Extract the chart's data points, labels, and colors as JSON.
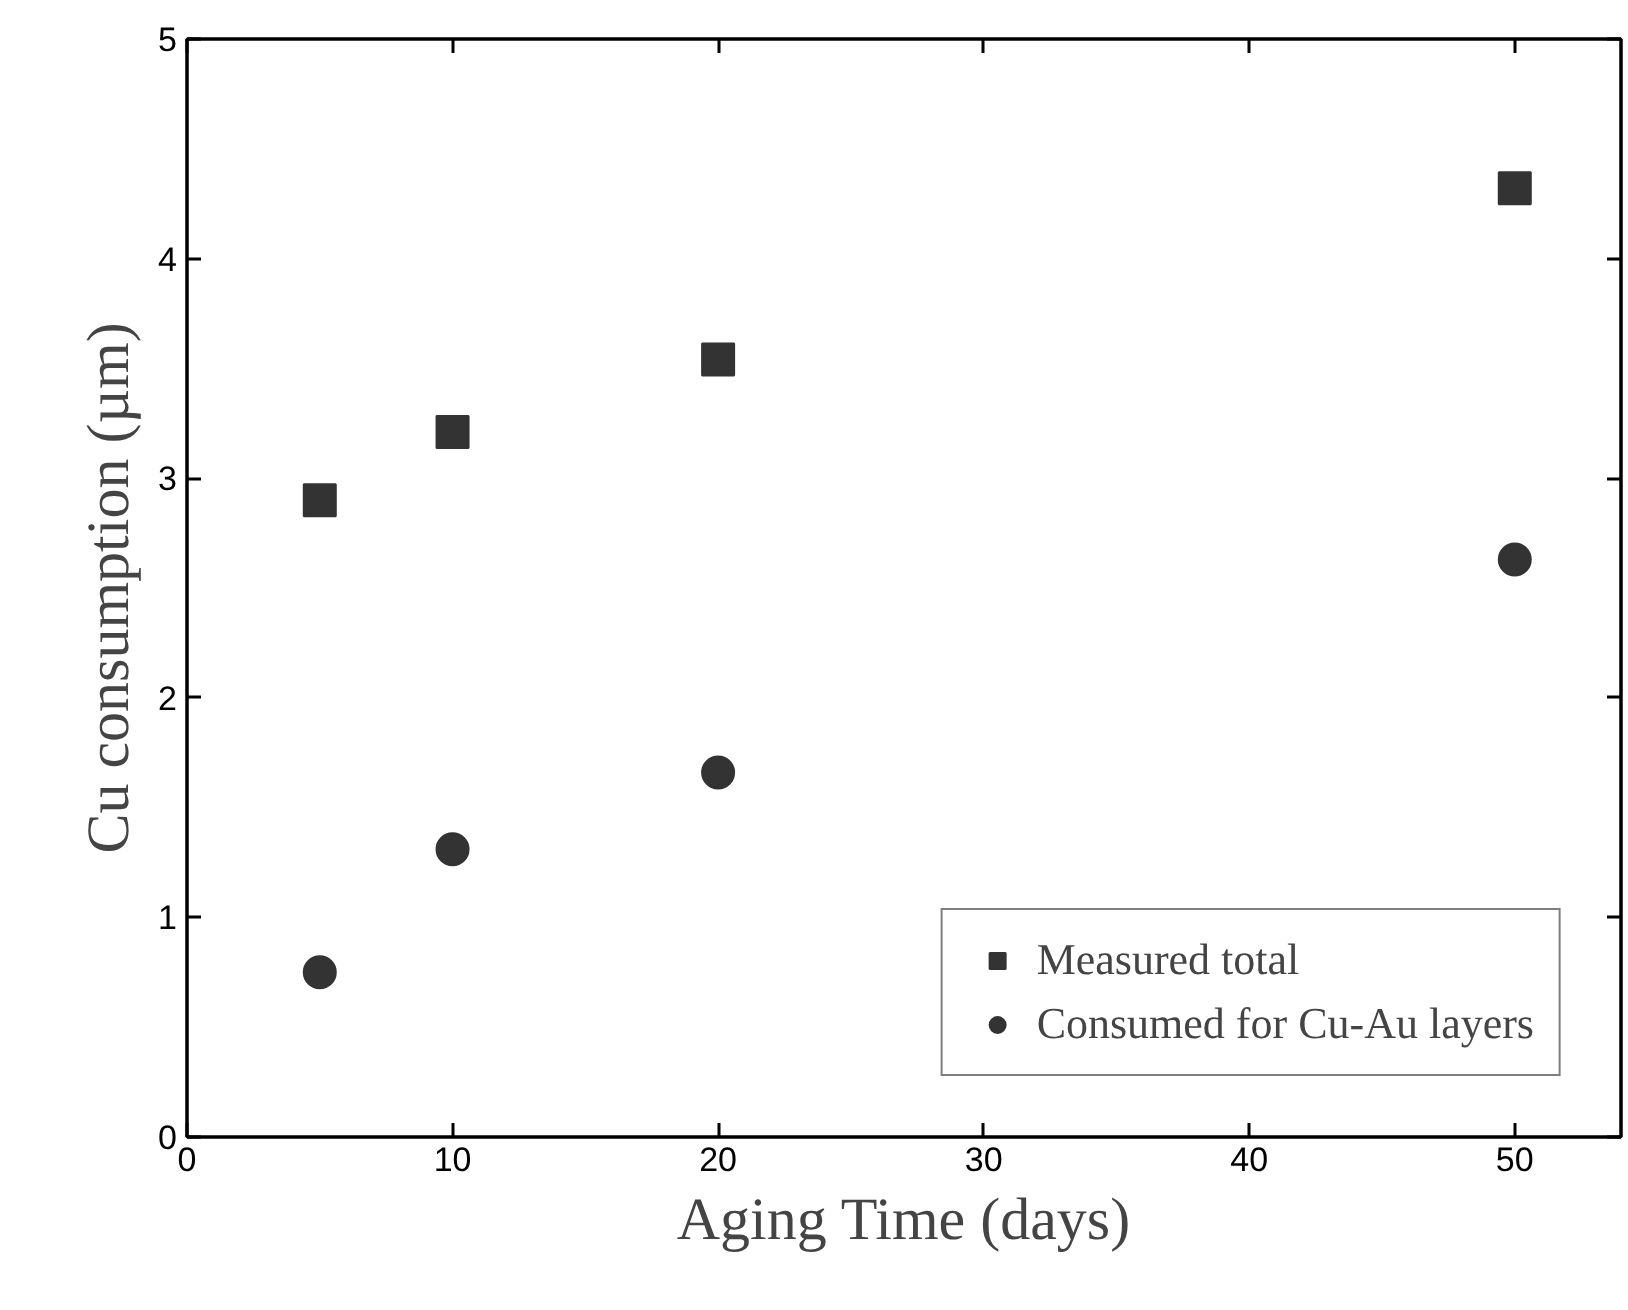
{
  "chart_data": {
    "type": "scatter",
    "xlabel": "Aging Time (days)",
    "ylabel": "Cu consumption (µm)",
    "xlim": [
      0,
      54
    ],
    "ylim": [
      0,
      5
    ],
    "xticks": [
      0,
      10,
      20,
      30,
      40,
      50
    ],
    "yticks": [
      0,
      1,
      2,
      3,
      4,
      5
    ],
    "grid": false,
    "legend": "bottom right",
    "series": [
      {
        "name": "Measured total",
        "color": "#333333",
        "marker": "square",
        "x": [
          5,
          10,
          20,
          50
        ],
        "values": [
          2.9,
          3.21,
          3.54,
          4.32
        ]
      },
      {
        "name": "Consumed for Cu-Au layers",
        "color": "#333333",
        "marker": "circle",
        "x": [
          5,
          10,
          20,
          50
        ],
        "values": [
          0.75,
          1.31,
          1.66,
          2.63
        ]
      }
    ]
  }
}
